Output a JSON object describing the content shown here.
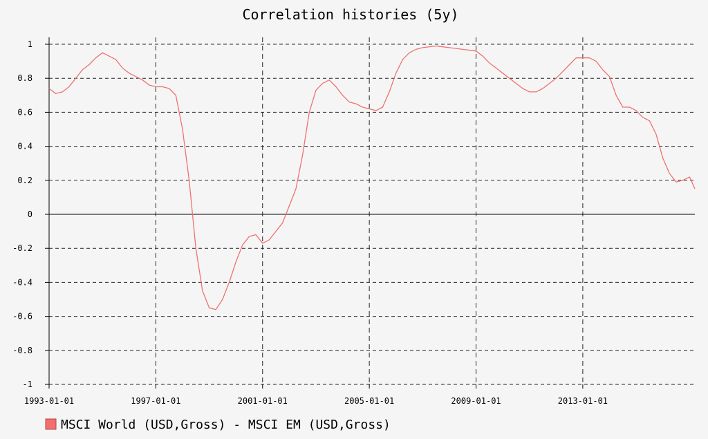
{
  "chart_data": {
    "type": "line",
    "title": "Correlation histories (5y)",
    "xlabel": "",
    "ylabel": "",
    "xlim": [
      1993.0,
      2017.2
    ],
    "ylim": [
      -1,
      1
    ],
    "x_ticks": [
      1993,
      1997,
      2001,
      2005,
      2009,
      2013
    ],
    "x_tick_labels": [
      "1993-01-01",
      "1997-01-01",
      "2001-01-01",
      "2005-01-01",
      "2009-01-01",
      "2013-01-01"
    ],
    "y_ticks": [
      1,
      0.8,
      0.6,
      0.4,
      0.2,
      0,
      -0.2,
      -0.4,
      -0.6,
      -0.8,
      -1
    ],
    "y_tick_labels": [
      "1",
      "0.8",
      "0.6",
      "0.4",
      "0.2",
      "0",
      "-0.2",
      "-0.4",
      "-0.6",
      "-0.8",
      "-1"
    ],
    "grid": true,
    "legend_position": "bottom-left",
    "series": [
      {
        "name": "MSCI World (USD,Gross) - MSCI EM (USD,Gross)",
        "color": "#f07070",
        "points": [
          [
            1993.0,
            0.74
          ],
          [
            1993.25,
            0.71
          ],
          [
            1993.5,
            0.72
          ],
          [
            1993.75,
            0.75
          ],
          [
            1994.0,
            0.8
          ],
          [
            1994.25,
            0.85
          ],
          [
            1994.5,
            0.88
          ],
          [
            1994.75,
            0.92
          ],
          [
            1995.0,
            0.95
          ],
          [
            1995.25,
            0.93
          ],
          [
            1995.5,
            0.91
          ],
          [
            1995.75,
            0.86
          ],
          [
            1996.0,
            0.83
          ],
          [
            1996.25,
            0.81
          ],
          [
            1996.5,
            0.79
          ],
          [
            1996.75,
            0.76
          ],
          [
            1997.0,
            0.75
          ],
          [
            1997.25,
            0.75
          ],
          [
            1997.5,
            0.74
          ],
          [
            1997.75,
            0.7
          ],
          [
            1998.0,
            0.5
          ],
          [
            1998.25,
            0.2
          ],
          [
            1998.5,
            -0.2
          ],
          [
            1998.75,
            -0.45
          ],
          [
            1999.0,
            -0.55
          ],
          [
            1999.25,
            -0.56
          ],
          [
            1999.5,
            -0.5
          ],
          [
            1999.75,
            -0.4
          ],
          [
            2000.0,
            -0.28
          ],
          [
            2000.25,
            -0.18
          ],
          [
            2000.5,
            -0.13
          ],
          [
            2000.75,
            -0.12
          ],
          [
            2001.0,
            -0.17
          ],
          [
            2001.25,
            -0.15
          ],
          [
            2001.5,
            -0.1
          ],
          [
            2001.75,
            -0.05
          ],
          [
            2002.0,
            0.05
          ],
          [
            2002.25,
            0.15
          ],
          [
            2002.5,
            0.35
          ],
          [
            2002.75,
            0.6
          ],
          [
            2003.0,
            0.73
          ],
          [
            2003.25,
            0.77
          ],
          [
            2003.5,
            0.79
          ],
          [
            2003.75,
            0.75
          ],
          [
            2004.0,
            0.7
          ],
          [
            2004.25,
            0.66
          ],
          [
            2004.5,
            0.65
          ],
          [
            2004.75,
            0.63
          ],
          [
            2005.0,
            0.62
          ],
          [
            2005.25,
            0.61
          ],
          [
            2005.5,
            0.63
          ],
          [
            2005.75,
            0.72
          ],
          [
            2006.0,
            0.83
          ],
          [
            2006.25,
            0.91
          ],
          [
            2006.5,
            0.95
          ],
          [
            2006.75,
            0.97
          ],
          [
            2007.0,
            0.98
          ],
          [
            2007.5,
            0.99
          ],
          [
            2008.0,
            0.98
          ],
          [
            2008.5,
            0.97
          ],
          [
            2009.0,
            0.96
          ],
          [
            2009.25,
            0.93
          ],
          [
            2009.5,
            0.89
          ],
          [
            2009.75,
            0.86
          ],
          [
            2010.0,
            0.83
          ],
          [
            2010.25,
            0.8
          ],
          [
            2010.5,
            0.77
          ],
          [
            2010.75,
            0.74
          ],
          [
            2011.0,
            0.72
          ],
          [
            2011.25,
            0.72
          ],
          [
            2011.5,
            0.74
          ],
          [
            2011.75,
            0.77
          ],
          [
            2012.0,
            0.8
          ],
          [
            2012.25,
            0.84
          ],
          [
            2012.5,
            0.88
          ],
          [
            2012.75,
            0.92
          ],
          [
            2013.0,
            0.92
          ],
          [
            2013.25,
            0.92
          ],
          [
            2013.5,
            0.9
          ],
          [
            2013.75,
            0.85
          ],
          [
            2014.0,
            0.81
          ],
          [
            2014.25,
            0.7
          ],
          [
            2014.5,
            0.63
          ],
          [
            2014.75,
            0.63
          ],
          [
            2015.0,
            0.61
          ],
          [
            2015.25,
            0.57
          ],
          [
            2015.5,
            0.55
          ],
          [
            2015.75,
            0.47
          ],
          [
            2016.0,
            0.33
          ],
          [
            2016.25,
            0.24
          ],
          [
            2016.5,
            0.19
          ],
          [
            2016.75,
            0.2
          ],
          [
            2017.0,
            0.22
          ],
          [
            2017.2,
            0.15
          ]
        ]
      }
    ]
  }
}
